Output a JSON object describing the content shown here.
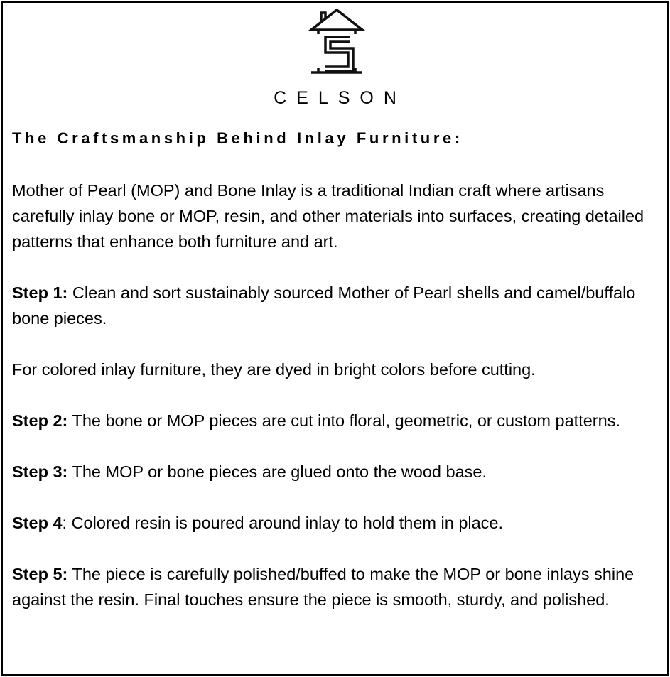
{
  "logo": {
    "icon": "house-s-logo-icon",
    "text": "CELSON"
  },
  "heading": "The Craftsmanship Behind Inlay Furniture:",
  "paragraphs": [
    {
      "bold": "",
      "text": "Mother of Pearl (MOP) and Bone Inlay is a traditional Indian craft where artisans carefully inlay bone or MOP, resin, and other materials into surfaces, creating detailed patterns that enhance both furniture and art."
    },
    {
      "bold": "Step 1:",
      "text": " Clean and sort sustainably sourced Mother of Pearl shells and camel/buffalo bone pieces."
    },
    {
      "bold": "",
      "text": "For colored inlay furniture, they are dyed in bright colors before cutting."
    },
    {
      "bold": "Step 2:",
      "text": " The bone or MOP pieces are cut into floral, geometric, or custom patterns."
    },
    {
      "bold": "Step 3:",
      "text": " The MOP or bone pieces are glued onto the wood base."
    },
    {
      "bold": "Step 4",
      "text": ": Colored resin is poured around inlay to hold them in place."
    },
    {
      "bold": "Step 5:",
      "text": " The piece is carefully polished/buffed to make the MOP or bone inlays shine against the resin. Final touches ensure the piece is smooth, sturdy, and polished."
    }
  ]
}
